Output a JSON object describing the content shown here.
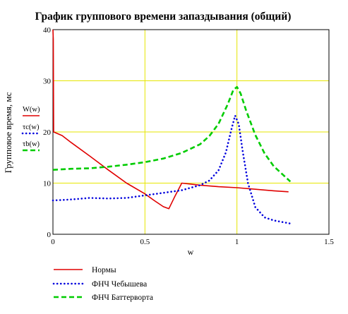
{
  "chart_data": {
    "type": "line",
    "title": "График группового времени запаздывания (общий)",
    "xlabel": "w",
    "ylabel": "Групповое время, мс",
    "xlim": [
      0,
      1.5
    ],
    "ylim": [
      0,
      40
    ],
    "x_ticks": [
      0,
      0.5,
      1,
      1.5
    ],
    "x_tick_labels": [
      "0",
      "0.5",
      "1",
      "1.5"
    ],
    "y_ticks": [
      0,
      10,
      20,
      30,
      40
    ],
    "y_tick_labels": [
      "0",
      "10",
      "20",
      "30",
      "40"
    ],
    "grid": true,
    "grid_color": "#e6e600",
    "axis_trace_labels": [
      "W(w)",
      "τc(w)",
      "τb(w)"
    ],
    "series": [
      {
        "name": "Нормы",
        "color": "#e00000",
        "style": "solid",
        "points": [
          [
            0.0,
            40.0
          ],
          [
            0.002,
            38.0
          ],
          [
            0.004,
            20.0
          ],
          [
            0.05,
            19.3
          ],
          [
            0.1,
            17.9
          ],
          [
            0.2,
            15.3
          ],
          [
            0.3,
            12.6
          ],
          [
            0.4,
            10.0
          ],
          [
            0.5,
            7.9
          ],
          [
            0.55,
            6.6
          ],
          [
            0.6,
            5.4
          ],
          [
            0.63,
            5.0
          ],
          [
            0.66,
            7.2
          ],
          [
            0.7,
            10.0
          ],
          [
            0.8,
            9.6
          ],
          [
            0.9,
            9.3
          ],
          [
            1.0,
            9.1
          ],
          [
            1.1,
            8.8
          ],
          [
            1.2,
            8.5
          ],
          [
            1.28,
            8.3
          ]
        ]
      },
      {
        "name": "ФНЧ Чебышева",
        "color": "#0000dd",
        "style": "dotted",
        "points": [
          [
            0.0,
            6.6
          ],
          [
            0.1,
            6.8
          ],
          [
            0.2,
            7.1
          ],
          [
            0.3,
            7.0
          ],
          [
            0.4,
            7.1
          ],
          [
            0.5,
            7.6
          ],
          [
            0.6,
            8.1
          ],
          [
            0.7,
            8.6
          ],
          [
            0.8,
            9.6
          ],
          [
            0.85,
            10.5
          ],
          [
            0.9,
            12.5
          ],
          [
            0.94,
            16.0
          ],
          [
            0.97,
            20.5
          ],
          [
            0.99,
            23.2
          ],
          [
            1.01,
            21.5
          ],
          [
            1.03,
            16.5
          ],
          [
            1.06,
            10.0
          ],
          [
            1.1,
            5.3
          ],
          [
            1.15,
            3.3
          ],
          [
            1.2,
            2.7
          ],
          [
            1.29,
            2.1
          ]
        ]
      },
      {
        "name": "ФНЧ Баттерворта",
        "color": "#00cc00",
        "style": "dashed",
        "points": [
          [
            0.0,
            12.6
          ],
          [
            0.1,
            12.8
          ],
          [
            0.2,
            12.9
          ],
          [
            0.3,
            13.2
          ],
          [
            0.4,
            13.6
          ],
          [
            0.5,
            14.1
          ],
          [
            0.6,
            14.8
          ],
          [
            0.7,
            15.9
          ],
          [
            0.8,
            17.6
          ],
          [
            0.85,
            19.2
          ],
          [
            0.9,
            21.6
          ],
          [
            0.95,
            25.4
          ],
          [
            0.98,
            28.2
          ],
          [
            1.0,
            28.8
          ],
          [
            1.02,
            27.5
          ],
          [
            1.05,
            24.2
          ],
          [
            1.1,
            19.4
          ],
          [
            1.15,
            15.8
          ],
          [
            1.2,
            13.3
          ],
          [
            1.29,
            10.3
          ]
        ]
      }
    ]
  }
}
